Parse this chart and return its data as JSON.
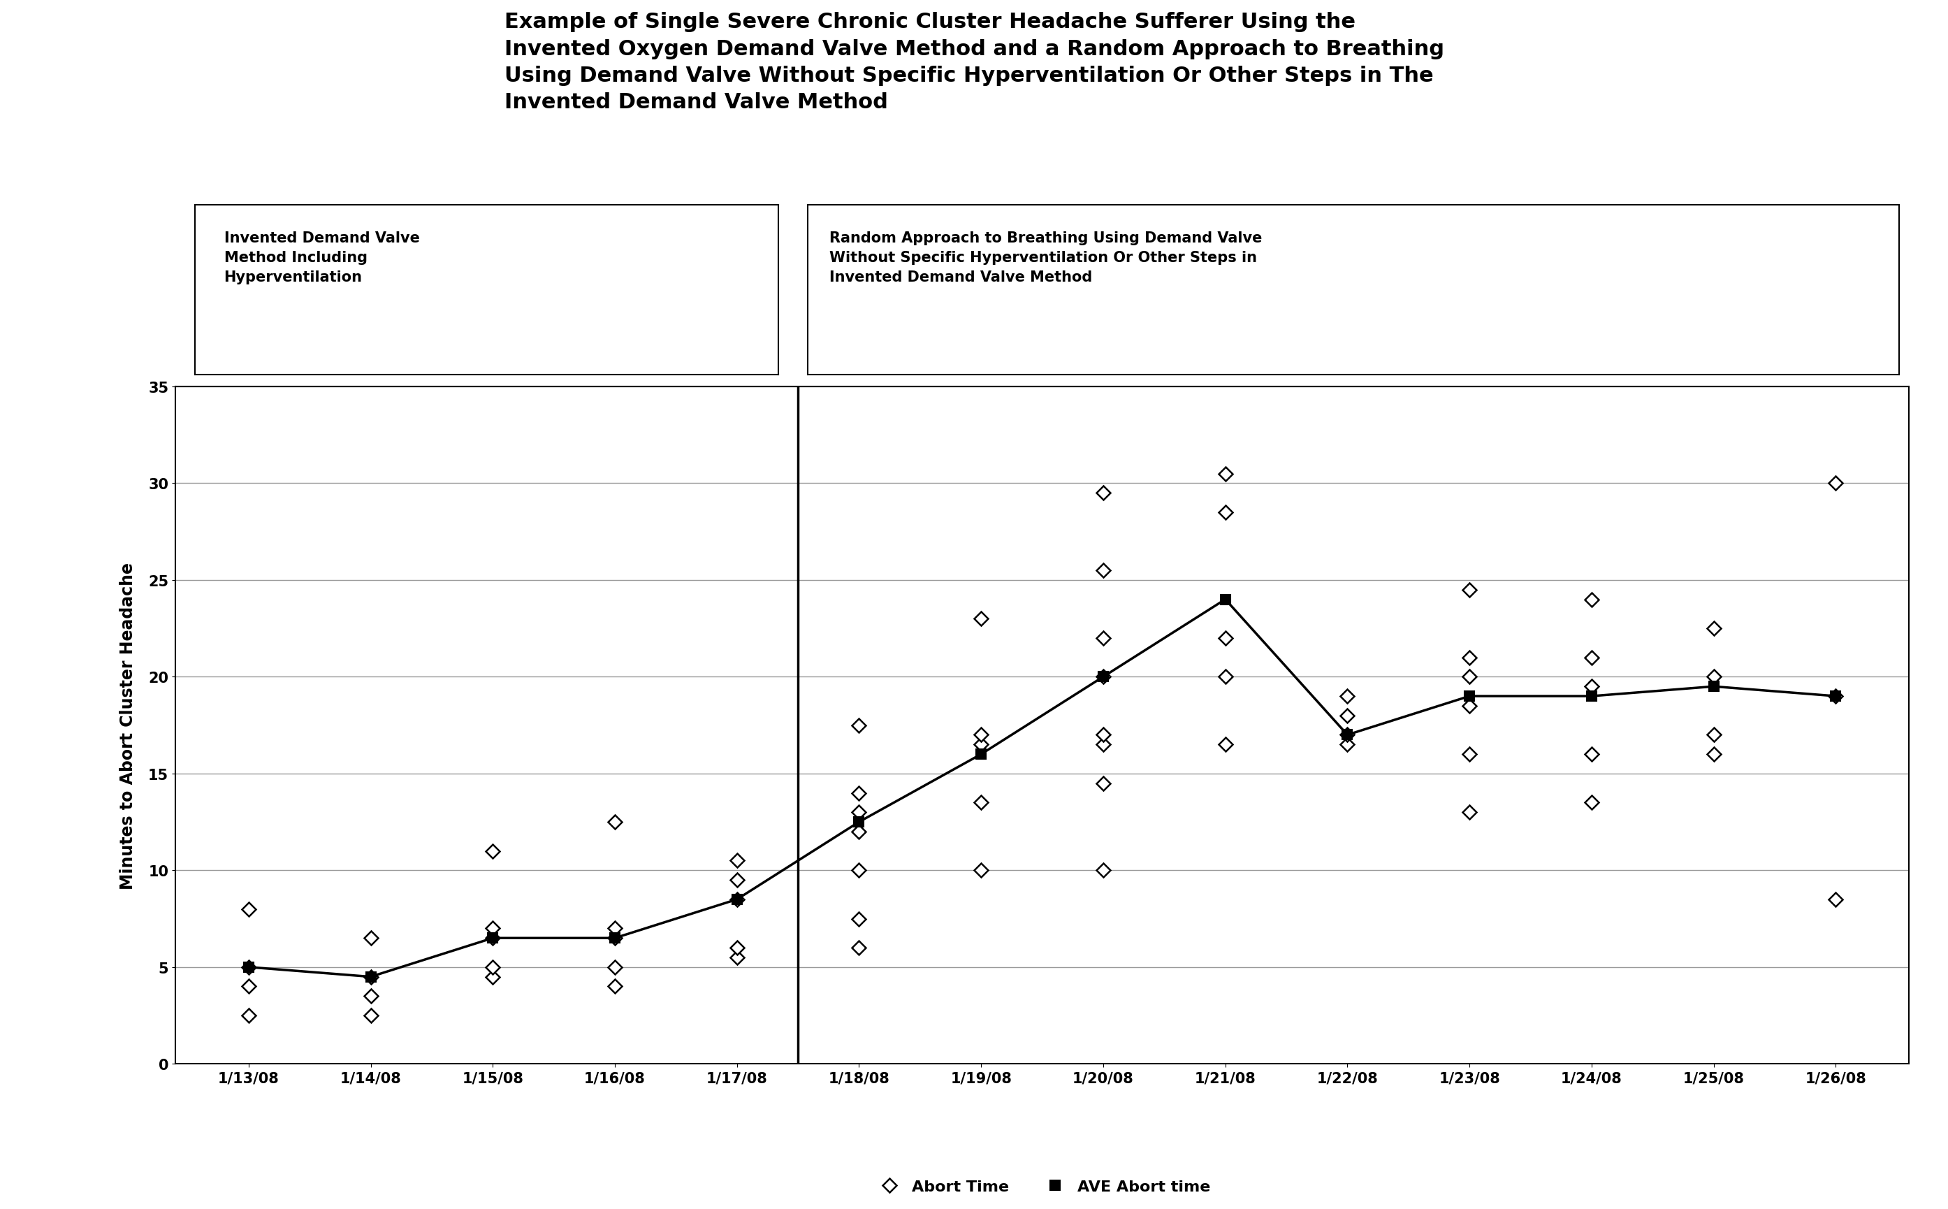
{
  "title_line1": "Example of Single Severe Chronic Cluster Headache Sufferer Using the",
  "title_line2": "Invented Oxygen Demand Valve Method and a Random Approach to Breathing",
  "title_line3": "Using Demand Valve Without Specific Hyperventilation Or Other Steps in The",
  "title_line4": "Invented Demand Valve Method",
  "ylabel": "Minutes to Abort Cluster Headache",
  "dates": [
    "1/13/08",
    "1/14/08",
    "1/15/08",
    "1/16/08",
    "1/17/08",
    "1/18/08",
    "1/19/08",
    "1/20/08",
    "1/21/08",
    "1/22/08",
    "1/23/08",
    "1/24/08",
    "1/25/08",
    "1/26/08"
  ],
  "scatter_points": {
    "1/13/08": [
      2.5,
      4.0,
      5.0,
      8.0
    ],
    "1/14/08": [
      2.5,
      3.5,
      4.5,
      6.5
    ],
    "1/15/08": [
      4.5,
      5.0,
      6.5,
      7.0,
      11.0
    ],
    "1/16/08": [
      4.0,
      5.0,
      6.5,
      7.0,
      12.5
    ],
    "1/17/08": [
      5.5,
      6.0,
      8.5,
      9.5,
      10.5
    ],
    "1/18/08": [
      6.0,
      7.5,
      10.0,
      12.0,
      13.0,
      14.0,
      17.5
    ],
    "1/19/08": [
      10.0,
      13.5,
      16.5,
      17.0,
      23.0
    ],
    "1/20/08": [
      10.0,
      14.5,
      16.5,
      17.0,
      20.0,
      22.0,
      25.5,
      29.5
    ],
    "1/21/08": [
      16.5,
      20.0,
      22.0,
      28.5,
      30.5
    ],
    "1/22/08": [
      16.5,
      17.0,
      18.0,
      19.0
    ],
    "1/23/08": [
      13.0,
      16.0,
      18.5,
      20.0,
      21.0,
      24.5
    ],
    "1/24/08": [
      13.5,
      16.0,
      19.5,
      21.0,
      24.0
    ],
    "1/25/08": [
      16.0,
      17.0,
      20.0,
      22.5
    ],
    "1/26/08": [
      8.5,
      19.0,
      30.0
    ]
  },
  "avg_points": {
    "1/13/08": 5.0,
    "1/14/08": 4.5,
    "1/15/08": 6.5,
    "1/16/08": 6.5,
    "1/17/08": 8.5,
    "1/18/08": 12.5,
    "1/19/08": 16.0,
    "1/20/08": 20.0,
    "1/21/08": 24.0,
    "1/22/08": 17.0,
    "1/23/08": 19.0,
    "1/24/08": 19.0,
    "1/25/08": 19.5,
    "1/26/08": 19.0
  },
  "ylim": [
    0,
    35
  ],
  "yticks": [
    0,
    5,
    10,
    15,
    20,
    25,
    30,
    35
  ],
  "left_box_text": "Invented Demand Valve\nMethod Including\nHyperventilation",
  "right_box_text": "Random Approach to Breathing Using Demand Valve\nWithout Specific Hyperventilation Or Other Steps in\nInvented Demand Valve Method",
  "legend_scatter_label": "Abort Time",
  "legend_avg_label": "AVE Abort time",
  "background_color": "#ffffff",
  "title_fontsize": 22,
  "axis_label_fontsize": 17,
  "tick_fontsize": 15,
  "annotation_fontsize": 15,
  "legend_fontsize": 16
}
